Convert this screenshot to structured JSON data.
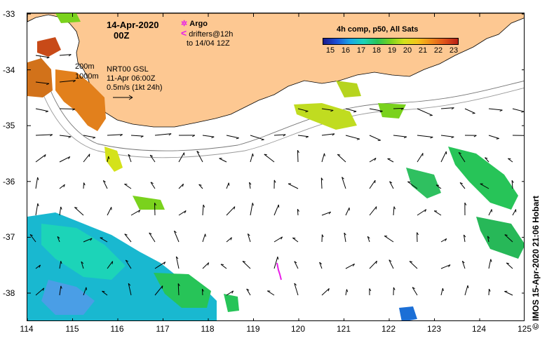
{
  "map": {
    "date_line1": "14-Apr-2020",
    "date_line2": "00Z",
    "argo_label": "Argo",
    "drifters_label": "drifters@12h",
    "drifters_date": "to 14/04 12Z",
    "isobath_200": "200m",
    "isobath_1000": "1000m",
    "nrt_title": "NRT00 GSL",
    "nrt_date": "11-Apr 06:00Z",
    "vector_scale": "0.5m/s (1kt 24h)",
    "credit": "© IMOS 15-Apr-2020 21:06 Hobart",
    "lat_ticks": [
      "-33",
      "-34",
      "-35",
      "-36",
      "-37",
      "-38"
    ],
    "lon_ticks": [
      "114",
      "115",
      "116",
      "117",
      "118",
      "119",
      "120",
      "121",
      "122",
      "123",
      "124",
      "125"
    ],
    "land_color": "#fdc892",
    "argo_color": "#e81ee8"
  },
  "colorbar": {
    "title": "4h comp, p50, All Sats",
    "ticks": [
      "15",
      "16",
      "17",
      "18",
      "19",
      "20",
      "21",
      "22",
      "23"
    ],
    "icon": "temperature-colorbar"
  }
}
